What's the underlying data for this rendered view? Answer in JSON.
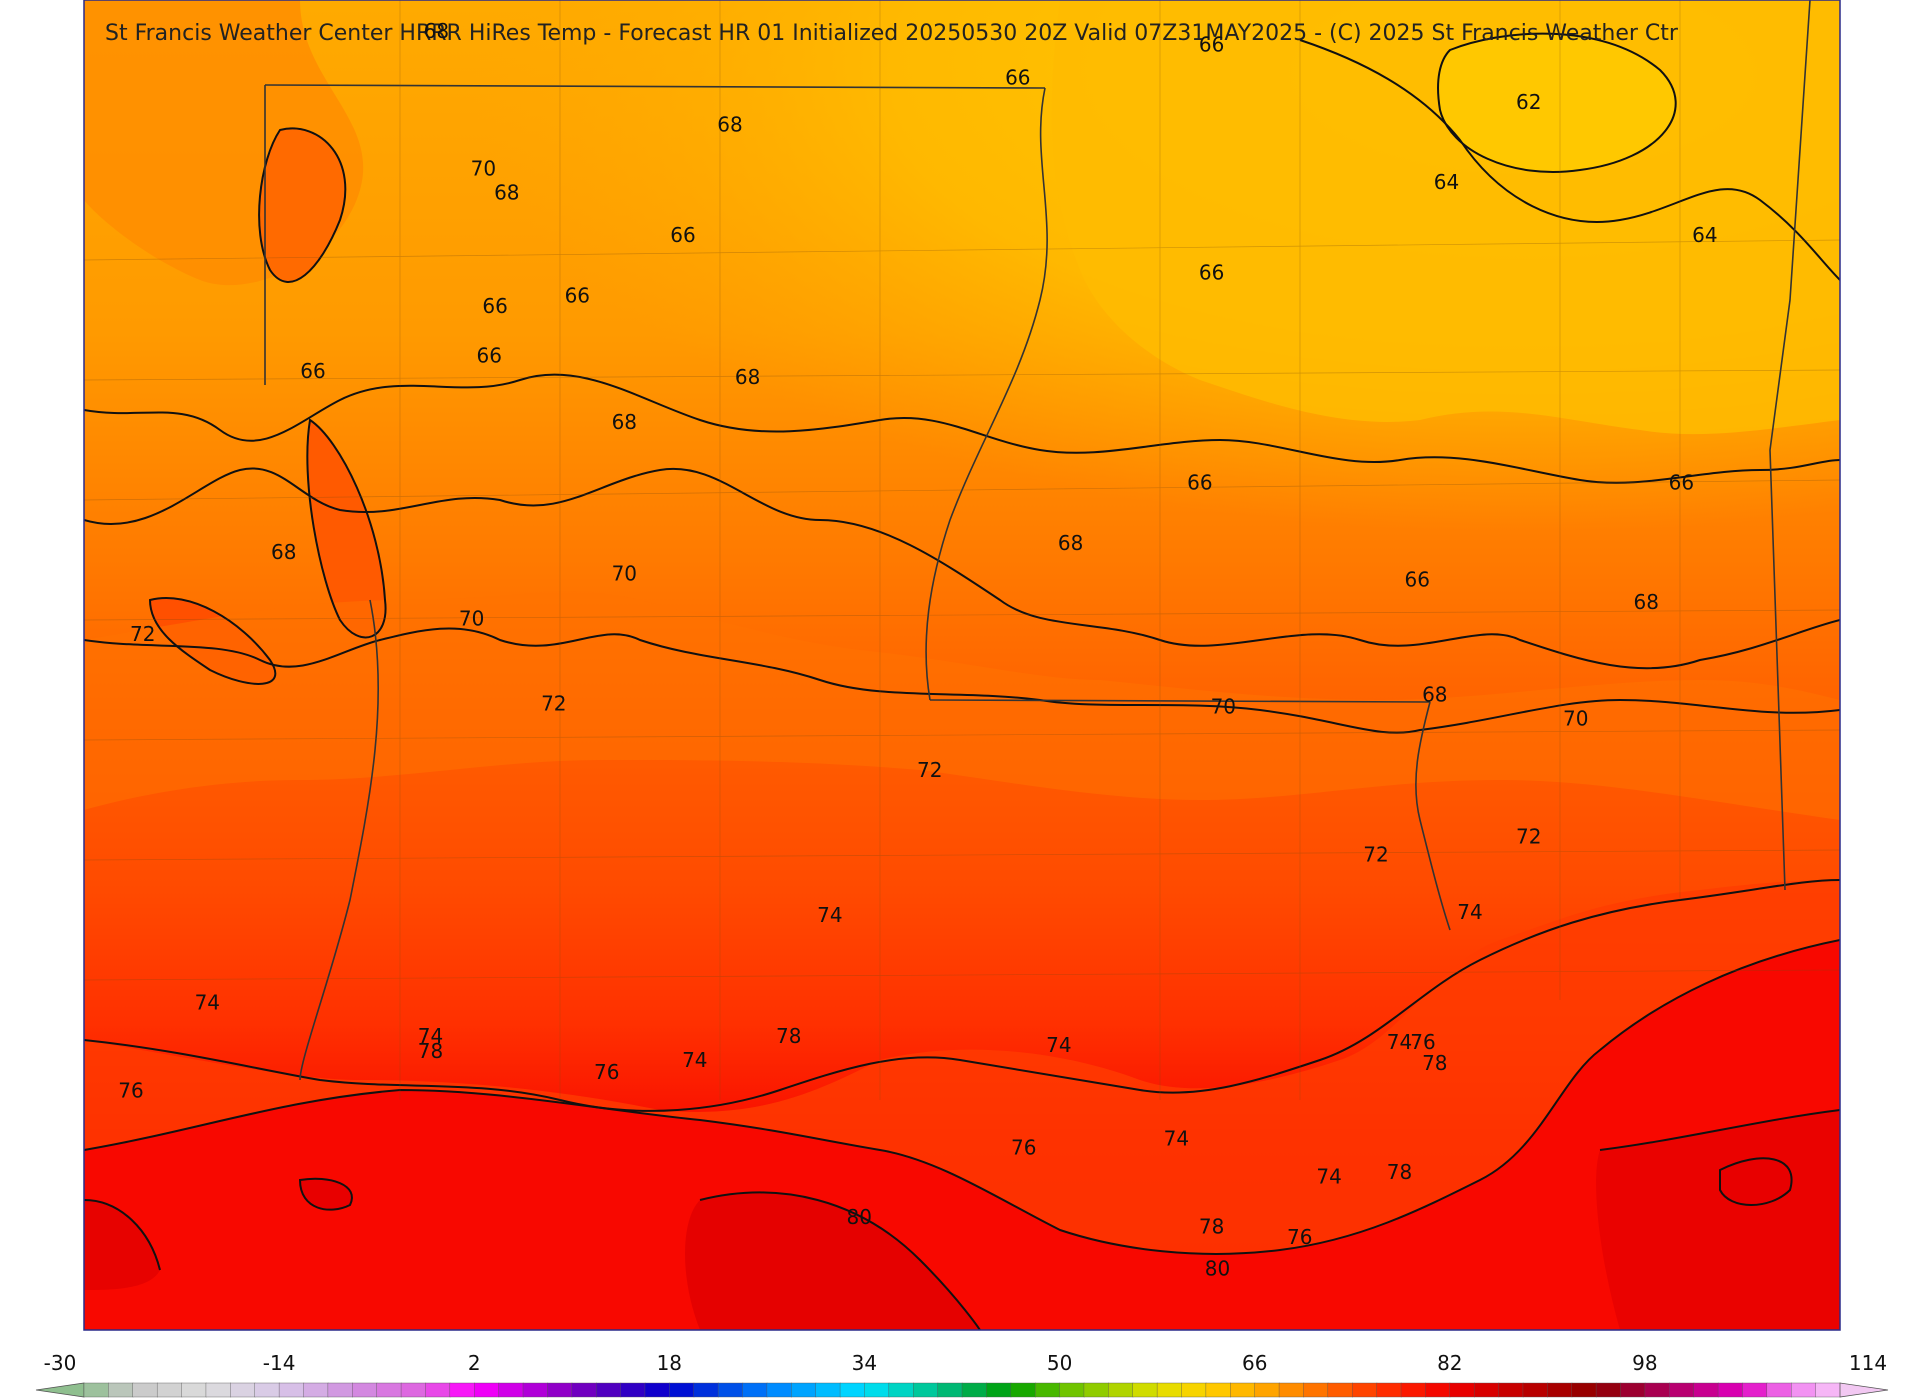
{
  "title": "St Francis Weather Center HRRR HiRes Temp - Forecast HR 01 Initialized 20250530 20Z Valid 07Z31MAY2025 - (C) 2025 St Francis Weather Ctr",
  "contour_labels": [
    {
      "text": "68",
      "lon_lat": [
        -96.0,
        35.25
      ]
    },
    {
      "text": "66",
      "lon_lat": [
        -89.4,
        35.16
      ]
    },
    {
      "text": "66",
      "lon_lat": [
        -91.05,
        34.94
      ]
    },
    {
      "text": "68",
      "lon_lat": [
        -93.5,
        34.63
      ]
    },
    {
      "text": "62",
      "lon_lat": [
        -86.7,
        34.78
      ]
    },
    {
      "text": "70",
      "lon_lat": [
        -95.6,
        34.34
      ]
    },
    {
      "text": "68",
      "lon_lat": [
        -95.4,
        34.18
      ]
    },
    {
      "text": "64",
      "lon_lat": [
        -87.4,
        34.25
      ]
    },
    {
      "text": "66",
      "lon_lat": [
        -93.9,
        33.9
      ]
    },
    {
      "text": "64",
      "lon_lat": [
        -85.2,
        33.9
      ]
    },
    {
      "text": "66",
      "lon_lat": [
        -89.4,
        33.65
      ]
    },
    {
      "text": "66",
      "lon_lat": [
        -95.5,
        33.43
      ]
    },
    {
      "text": "66",
      "lon_lat": [
        -94.8,
        33.5
      ]
    },
    {
      "text": "66",
      "lon_lat": [
        -95.55,
        33.1
      ]
    },
    {
      "text": "66",
      "lon_lat": [
        -97.05,
        33.0
      ]
    },
    {
      "text": "68",
      "lon_lat": [
        -93.35,
        32.96
      ]
    },
    {
      "text": "68",
      "lon_lat": [
        -94.4,
        32.66
      ]
    },
    {
      "text": "66",
      "lon_lat": [
        -89.5,
        32.26
      ]
    },
    {
      "text": "66",
      "lon_lat": [
        -85.4,
        32.26
      ]
    },
    {
      "text": "68",
      "lon_lat": [
        -97.3,
        31.8
      ]
    },
    {
      "text": "68",
      "lon_lat": [
        -90.6,
        31.86
      ]
    },
    {
      "text": "70",
      "lon_lat": [
        -94.4,
        31.66
      ]
    },
    {
      "text": "66",
      "lon_lat": [
        -87.65,
        31.62
      ]
    },
    {
      "text": "68",
      "lon_lat": [
        -85.7,
        31.47
      ]
    },
    {
      "text": "70",
      "lon_lat": [
        -95.7,
        31.36
      ]
    },
    {
      "text": "72",
      "lon_lat": [
        -98.5,
        31.26
      ]
    },
    {
      "text": "68",
      "lon_lat": [
        -87.5,
        30.86
      ]
    },
    {
      "text": "72",
      "lon_lat": [
        -95.0,
        30.8
      ]
    },
    {
      "text": "70",
      "lon_lat": [
        -89.3,
        30.78
      ]
    },
    {
      "text": "70",
      "lon_lat": [
        -86.3,
        30.7
      ]
    },
    {
      "text": "72",
      "lon_lat": [
        -91.8,
        30.36
      ]
    },
    {
      "text": "72",
      "lon_lat": [
        -88.0,
        29.8
      ]
    },
    {
      "text": "72",
      "lon_lat": [
        -86.7,
        29.92
      ]
    },
    {
      "text": "74",
      "lon_lat": [
        -92.65,
        29.4
      ]
    },
    {
      "text": "74",
      "lon_lat": [
        -87.2,
        29.42
      ]
    },
    {
      "text": "74",
      "lon_lat": [
        -97.95,
        28.82
      ]
    },
    {
      "text": "74",
      "lon_lat": [
        -96.05,
        28.6
      ]
    },
    {
      "text": "78",
      "lon_lat": [
        -96.05,
        28.5
      ]
    },
    {
      "text": "78",
      "lon_lat": [
        -93.0,
        28.6
      ]
    },
    {
      "text": "74",
      "lon_lat": [
        -93.8,
        28.44
      ]
    },
    {
      "text": "76",
      "lon_lat": [
        -94.55,
        28.36
      ]
    },
    {
      "text": "74",
      "lon_lat": [
        -90.7,
        28.54
      ]
    },
    {
      "text": "74",
      "lon_lat": [
        -87.8,
        28.56
      ]
    },
    {
      "text": "76",
      "lon_lat": [
        -87.6,
        28.56
      ]
    },
    {
      "text": "78",
      "lon_lat": [
        -87.5,
        28.42
      ]
    },
    {
      "text": "76",
      "lon_lat": [
        -98.6,
        28.24
      ]
    },
    {
      "text": "76",
      "lon_lat": [
        -91.0,
        27.86
      ]
    },
    {
      "text": "74",
      "lon_lat": [
        -89.7,
        27.92
      ]
    },
    {
      "text": "74",
      "lon_lat": [
        -88.4,
        27.67
      ]
    },
    {
      "text": "78",
      "lon_lat": [
        -87.8,
        27.7
      ]
    },
    {
      "text": "80",
      "lon_lat": [
        -92.4,
        27.4
      ]
    },
    {
      "text": "78",
      "lon_lat": [
        -89.4,
        27.34
      ]
    },
    {
      "text": "76",
      "lon_lat": [
        -88.65,
        27.27
      ]
    },
    {
      "text": "80",
      "lon_lat": [
        -89.35,
        27.06
      ]
    }
  ],
  "colorbar": {
    "min": -30,
    "max": 114,
    "tick_labels": [
      "-30",
      "-14",
      "2",
      "18",
      "34",
      "50",
      "66",
      "82",
      "98",
      "114"
    ]
  },
  "colors": {
    "temp_62": "#ffcc00",
    "temp_64": "#ffbb00",
    "temp_66": "#ffaa00",
    "temp_68": "#ff8c00",
    "temp_70": "#ff7200",
    "temp_72": "#ff5a00",
    "temp_74": "#ff3c00",
    "temp_76": "#ff1e00",
    "temp_78": "#f80000",
    "temp_80": "#e00000",
    "contour": "#111111",
    "border": "#333333"
  }
}
